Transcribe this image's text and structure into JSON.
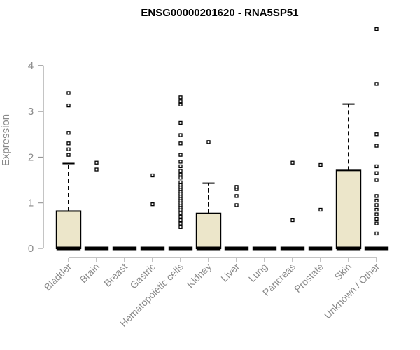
{
  "chart_data": {
    "type": "boxplot",
    "title": "ENSG00000201620 - RNA5SP51",
    "xlabel": "",
    "ylabel": "Expression",
    "ylim": [
      0,
      4.8
    ],
    "yticks": [
      0,
      1,
      2,
      3,
      4
    ],
    "grid": false,
    "legend": "none",
    "colors": {
      "box_fill": "#ece6ca",
      "axis": "#8a8a8a",
      "stroke": "#000000"
    },
    "categories": [
      "Bladder",
      "Brain",
      "Breast",
      "Gastric",
      "Hematopoietic cells",
      "Kidney",
      "Liver",
      "Lung",
      "Pancreas",
      "Prostate",
      "Skin",
      "Unknown / Other"
    ],
    "boxes": [
      {
        "category": "Bladder",
        "q1": 0,
        "median": 0,
        "q3": 0.82,
        "whisker_low": 0,
        "whisker_high": 1.86,
        "outliers": [
          2.05,
          2.17,
          2.3,
          2.53,
          3.13,
          3.4
        ]
      },
      {
        "category": "Brain",
        "q1": 0,
        "median": 0,
        "q3": 0,
        "whisker_low": 0,
        "whisker_high": 0,
        "outliers": [
          1.73,
          1.88
        ]
      },
      {
        "category": "Breast",
        "q1": 0,
        "median": 0,
        "q3": 0,
        "whisker_low": 0,
        "whisker_high": 0,
        "outliers": []
      },
      {
        "category": "Gastric",
        "q1": 0,
        "median": 0,
        "q3": 0,
        "whisker_low": 0,
        "whisker_high": 0,
        "outliers": [
          0.97,
          1.6
        ]
      },
      {
        "category": "Hematopoietic cells",
        "q1": 0,
        "median": 0,
        "q3": 0,
        "whisker_low": 0,
        "whisker_high": 0,
        "outliers": [
          0.47,
          0.55,
          0.62,
          0.7,
          0.78,
          0.85,
          0.9,
          0.95,
          1.0,
          1.05,
          1.1,
          1.15,
          1.2,
          1.25,
          1.3,
          1.35,
          1.4,
          1.45,
          1.55,
          1.62,
          1.7,
          1.8,
          1.9,
          2.05,
          2.3,
          2.48,
          2.75,
          3.15,
          3.22,
          3.31
        ]
      },
      {
        "category": "Kidney",
        "q1": 0,
        "median": 0,
        "q3": 0.77,
        "whisker_low": 0,
        "whisker_high": 1.43,
        "outliers": [
          2.33
        ]
      },
      {
        "category": "Liver",
        "q1": 0,
        "median": 0,
        "q3": 0,
        "whisker_low": 0,
        "whisker_high": 0,
        "outliers": [
          0.95,
          1.15,
          1.3,
          1.35
        ]
      },
      {
        "category": "Lung",
        "q1": 0,
        "median": 0,
        "q3": 0,
        "whisker_low": 0,
        "whisker_high": 0,
        "outliers": []
      },
      {
        "category": "Pancreas",
        "q1": 0,
        "median": 0,
        "q3": 0,
        "whisker_low": 0,
        "whisker_high": 0,
        "outliers": [
          0.62,
          1.88
        ]
      },
      {
        "category": "Prostate",
        "q1": 0,
        "median": 0,
        "q3": 0,
        "whisker_low": 0,
        "whisker_high": 0,
        "outliers": [
          0.85,
          1.83
        ]
      },
      {
        "category": "Skin",
        "q1": 0,
        "median": 0,
        "q3": 1.71,
        "whisker_low": 0,
        "whisker_high": 3.16,
        "outliers": []
      },
      {
        "category": "Unknown / Other",
        "q1": 0,
        "median": 0,
        "q3": 0,
        "whisker_low": 0,
        "whisker_high": 0,
        "outliers": [
          0.33,
          0.55,
          0.65,
          0.75,
          0.85,
          0.95,
          1.05,
          1.15,
          1.5,
          1.65,
          1.8,
          2.25,
          2.5,
          3.6,
          4.8
        ]
      }
    ]
  }
}
